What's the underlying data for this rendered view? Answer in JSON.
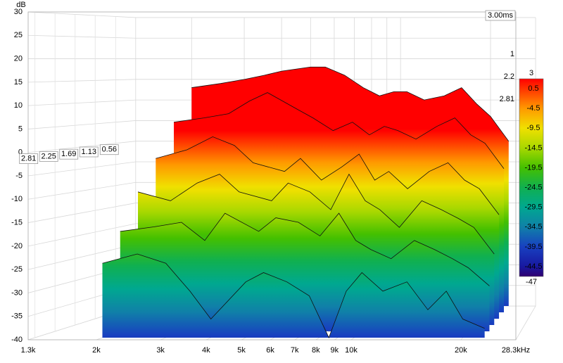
{
  "chart_data": {
    "type": "waterfall",
    "y_label": "dB",
    "ylim": [
      -40,
      30
    ],
    "yticks": [
      -40,
      -35,
      -30,
      -25,
      -20,
      -15,
      -10,
      -5,
      0,
      5,
      10,
      15,
      20,
      25,
      30
    ],
    "xlim": [
      1300,
      28300
    ],
    "log_x": true,
    "xticks": [
      {
        "value": 1300,
        "label": "1.3k"
      },
      {
        "value": 2000,
        "label": "2k"
      },
      {
        "value": 3000,
        "label": "3k"
      },
      {
        "value": 4000,
        "label": "4k"
      },
      {
        "value": 5000,
        "label": "5k"
      },
      {
        "value": 6000,
        "label": "6k"
      },
      {
        "value": 7000,
        "label": "7k"
      },
      {
        "value": 8000,
        "label": "8k"
      },
      {
        "value": 9000,
        "label": "9k"
      },
      {
        "value": 10000,
        "label": "10k"
      },
      {
        "value": 20000,
        "label": "20k"
      },
      {
        "value": 28300,
        "label": "28.3kHz"
      }
    ],
    "depth_lim": [
      0,
      3
    ],
    "depth_ticks": [
      0.56,
      1.13,
      1.69,
      2.25,
      2.81
    ],
    "depth_end_label": "3.00ms",
    "right_depth_labels": [
      "1",
      "2.2",
      "2.81"
    ],
    "x": [
      2000,
      2500,
      3000,
      3500,
      4000,
      5000,
      5600,
      6500,
      7500,
      8500,
      9500,
      10500,
      12000,
      14000,
      16000,
      18000,
      20000,
      23000
    ],
    "series": [
      {
        "time": 0,
        "values": [
          13,
          14,
          15,
          16,
          17,
          18,
          18,
          16,
          13,
          11,
          12,
          12,
          10,
          11,
          13,
          9,
          6,
          0
        ]
      },
      {
        "time": 0.56,
        "values": [
          5,
          6,
          7,
          10,
          12,
          8,
          6,
          3,
          5,
          2,
          4,
          3,
          1,
          4,
          6,
          2,
          0,
          -6
        ]
      },
      {
        "time": 1.13,
        "values": [
          -3,
          -1,
          2,
          0,
          -4,
          -6,
          -3,
          -8,
          -5,
          -2,
          -8,
          -6,
          -10,
          -6,
          -4,
          -8,
          -10,
          -16
        ]
      },
      {
        "time": 1.69,
        "values": [
          -10,
          -12,
          -8,
          -6,
          -10,
          -12,
          -8,
          -10,
          -14,
          -6,
          -12,
          -14,
          -18,
          -12,
          -14,
          -16,
          -18,
          -24
        ]
      },
      {
        "time": 2.25,
        "values": [
          -18,
          -17,
          -16,
          -20,
          -14,
          -18,
          -15,
          -16,
          -19,
          -14,
          -20,
          -22,
          -24,
          -20,
          -22,
          -24,
          -26,
          -30
        ]
      },
      {
        "time": 2.81,
        "values": [
          -24,
          -22,
          -24,
          -30,
          -36,
          -28,
          -26,
          -28,
          -31,
          -40,
          -30,
          -26,
          -30,
          -28,
          -34,
          -30,
          -36,
          -38
        ]
      }
    ],
    "colorscale": {
      "ticks": [
        3,
        0.5,
        -4.5,
        -9.5,
        -14.5,
        -19.5,
        -24.5,
        -29.5,
        -34.5,
        -39.5,
        -44.5,
        -47
      ],
      "colors": [
        "#ff0000",
        "#ff3300",
        "#ff9900",
        "#f0e000",
        "#a8d800",
        "#44c000",
        "#10b050",
        "#00a890",
        "#1080a8",
        "#1840c0",
        "#1818a0",
        "#300070"
      ]
    }
  }
}
